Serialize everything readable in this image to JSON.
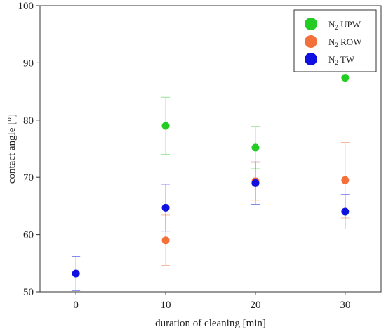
{
  "chart_data": {
    "type": "scatter",
    "xlabel": "duration of cleaning [min]",
    "ylabel": "contact angle [°]",
    "xlim": [
      -4,
      34
    ],
    "ylim": [
      50,
      100
    ],
    "x_ticks": [
      0,
      10,
      20,
      30
    ],
    "y_ticks": [
      50,
      60,
      70,
      80,
      90,
      100
    ],
    "grid": false,
    "legend_position": "top-right",
    "series": [
      {
        "name": "N2 UPW",
        "legend_base": "N",
        "legend_sub": "2",
        "legend_rest": " UPW",
        "color": "#22cc22",
        "points": [
          {
            "x": 10,
            "y": 79.0,
            "err": 5.0
          },
          {
            "x": 20,
            "y": 75.2,
            "err": 3.7
          },
          {
            "x": 30,
            "y": 87.4,
            "err": 0
          }
        ]
      },
      {
        "name": "N2 ROW",
        "legend_base": "N",
        "legend_sub": "2",
        "legend_rest": " ROW",
        "color": "#f4703a",
        "points": [
          {
            "x": 10,
            "y": 59.0,
            "err": 4.4
          },
          {
            "x": 20,
            "y": 69.3,
            "err": 3.3
          },
          {
            "x": 30,
            "y": 69.5,
            "err": 6.6
          }
        ]
      },
      {
        "name": "N2 TW",
        "legend_base": "N",
        "legend_sub": "2",
        "legend_rest": " TW",
        "color": "#1010e0",
        "points": [
          {
            "x": 0,
            "y": 53.2,
            "err": 3.0
          },
          {
            "x": 10,
            "y": 64.7,
            "err": 4.1
          },
          {
            "x": 20,
            "y": 69.0,
            "err": 3.7
          },
          {
            "x": 30,
            "y": 64.0,
            "err": 3.0
          }
        ]
      }
    ]
  }
}
